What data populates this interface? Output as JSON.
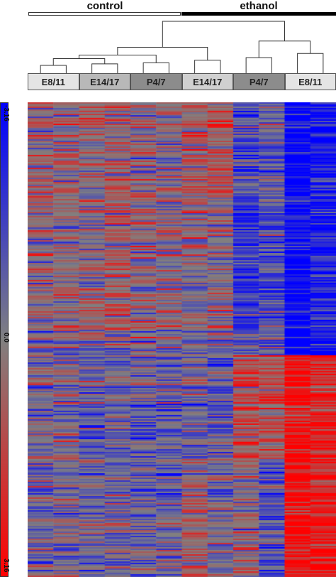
{
  "chart_data": {
    "type": "heatmap",
    "groups": [
      {
        "label": "control",
        "bar_style": "open"
      },
      {
        "label": "ethanol",
        "bar_style": "solid"
      }
    ],
    "samples": [
      {
        "label": "E8/11",
        "group": "control",
        "columns": 2,
        "box_color": "#e4e4e4"
      },
      {
        "label": "E14/17",
        "group": "control",
        "columns": 2,
        "box_color": "#b8b8b8"
      },
      {
        "label": "P4/7",
        "group": "control",
        "columns": 2,
        "box_color": "#8c8c8c"
      },
      {
        "label": "E14/17",
        "group": "ethanol",
        "columns": 2,
        "box_color": "#d0d0d0"
      },
      {
        "label": "P4/7",
        "group": "ethanol",
        "columns": 2,
        "box_color": "#8c8c8c"
      },
      {
        "label": "E8/11",
        "group": "ethanol",
        "columns": 2,
        "box_color": "#e4e4e4"
      }
    ],
    "n_columns": 12,
    "dendrogram_merges": [
      {
        "left": 0,
        "right": 1,
        "height": 0.15
      },
      {
        "left": 2,
        "right": 3,
        "height": 0.18
      },
      {
        "left": 4,
        "right": 5,
        "height": 0.2
      },
      {
        "left": 6,
        "right": 7,
        "height": 0.25
      },
      {
        "left": 8,
        "right": 9,
        "height": 0.3
      },
      {
        "left": 10,
        "right": 11,
        "height": 0.38
      },
      {
        "left": "m0",
        "right": "m1",
        "height": 0.28
      },
      {
        "left": "m6",
        "right": "m2",
        "height": 0.35
      },
      {
        "left": "m7",
        "right": "m3",
        "height": 0.5
      },
      {
        "left": "m4",
        "right": "m5",
        "height": 0.62
      },
      {
        "left": "m8",
        "right": "m9",
        "height": 1.0
      }
    ],
    "color_scale": {
      "min": -3.16,
      "mid": 0.0,
      "max": 3.16,
      "min_label": "-3.16",
      "mid_label": "0.0",
      "max_label": "3.16",
      "low_color": "#0000ff",
      "mid_color": "#808080",
      "high_color": "#ff0000"
    },
    "row_blocks": [
      {
        "fraction": 0.2,
        "col_bias": [
          0.3,
          0.3,
          0.1,
          0.6,
          0.2,
          0.1,
          0.7,
          0.9,
          -1.4,
          -1.0,
          -3.0,
          -2.6
        ]
      },
      {
        "fraction": 0.28,
        "col_bias": [
          0.2,
          0.3,
          0.2,
          0.6,
          0.3,
          0.2,
          0.1,
          0.2,
          -1.8,
          -1.3,
          -2.8,
          -2.4
        ]
      },
      {
        "fraction": 0.05,
        "col_bias": [
          0.0,
          0.0,
          0.0,
          0.0,
          0.0,
          0.0,
          0.0,
          0.0,
          -1.0,
          -1.0,
          -2.9,
          -2.2
        ]
      },
      {
        "fraction": 0.22,
        "col_bias": [
          -0.2,
          -0.1,
          -0.7,
          -0.6,
          -0.8,
          -0.9,
          -0.7,
          -0.9,
          1.2,
          0.9,
          2.6,
          2.2
        ]
      },
      {
        "fraction": 0.25,
        "col_bias": [
          -0.3,
          -0.2,
          -0.4,
          -0.5,
          -0.6,
          -0.8,
          0.5,
          -0.4,
          0.2,
          -1.2,
          2.8,
          2.3
        ]
      }
    ],
    "rows": 334
  }
}
